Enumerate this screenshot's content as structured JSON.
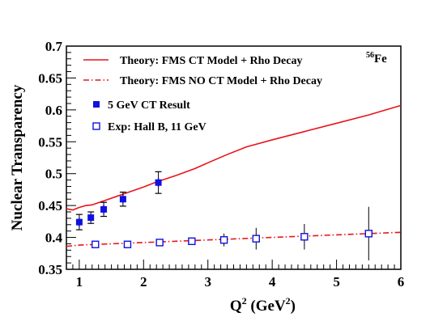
{
  "chart_data": {
    "type": "scatter",
    "xlabel": "Q",
    "xlabel_sup": "2",
    "xlabel_unit": " (GeV",
    "xlabel_unit_sup": "2",
    "xlabel_close": ")",
    "ylabel": "Nuclear Transparency",
    "annotation": "Fe",
    "annotation_sup": "56",
    "xlim": [
      0.8,
      6
    ],
    "ylim": [
      0.35,
      0.7
    ],
    "xticks": [
      1,
      2,
      3,
      4,
      5,
      6
    ],
    "yticks": [
      0.35,
      0.4,
      0.45,
      0.5,
      0.55,
      0.6,
      0.65,
      0.7
    ],
    "ytick_labels": [
      "0.35",
      "0.4",
      "0.45",
      "0.5",
      "0.55",
      "0.6",
      "0.65",
      "0.7"
    ],
    "legend_position": "top-left",
    "series": [
      {
        "name": "Theory: FMS CT Model + Rho Decay",
        "kind": "line",
        "style": "solid",
        "color": "#e8141b",
        "x": [
          0.8,
          0.9,
          1.0,
          1.1,
          1.2,
          1.4,
          1.6,
          1.8,
          2.0,
          2.2,
          2.5,
          2.8,
          3.0,
          3.3,
          3.6,
          4.0,
          4.5,
          5.0,
          5.5,
          6.0
        ],
        "y": [
          0.445,
          0.443,
          0.447,
          0.45,
          0.451,
          0.458,
          0.465,
          0.472,
          0.479,
          0.487,
          0.497,
          0.508,
          0.517,
          0.53,
          0.542,
          0.553,
          0.566,
          0.579,
          0.592,
          0.607
        ]
      },
      {
        "name": "Theory: FMS NO CT Model + Rho Decay",
        "kind": "line",
        "style": "dashdot",
        "color": "#e8141b",
        "x": [
          0.8,
          1.0,
          1.5,
          2.0,
          2.5,
          3.0,
          3.5,
          4.0,
          4.5,
          5.0,
          5.5,
          6.0
        ],
        "y": [
          0.386,
          0.388,
          0.39,
          0.392,
          0.394,
          0.396,
          0.398,
          0.4,
          0.402,
          0.404,
          0.406,
          0.408
        ]
      },
      {
        "name": "5 GeV CT Result",
        "kind": "markers",
        "marker": "filled-square",
        "color": "#1010e0",
        "x": [
          1.0,
          1.18,
          1.38,
          1.68,
          2.23
        ],
        "y": [
          0.424,
          0.431,
          0.444,
          0.46,
          0.486
        ],
        "err_stat": [
          0.007,
          0.006,
          0.007,
          0.006,
          0.007
        ],
        "err_sys": [
          0.012,
          0.009,
          0.011,
          0.011,
          0.017
        ]
      },
      {
        "name": "Exp: Hall B,  11 GeV",
        "kind": "markers",
        "marker": "open-square",
        "color": "#1010e0",
        "x": [
          1.25,
          1.75,
          2.25,
          2.75,
          3.25,
          3.75,
          4.5,
          5.5
        ],
        "y": [
          0.389,
          0.389,
          0.392,
          0.394,
          0.396,
          0.398,
          0.401,
          0.406
        ],
        "err": [
          0.002,
          0.002,
          0.003,
          0.004,
          0.01,
          0.017,
          0.02,
          0.042
        ]
      }
    ]
  }
}
